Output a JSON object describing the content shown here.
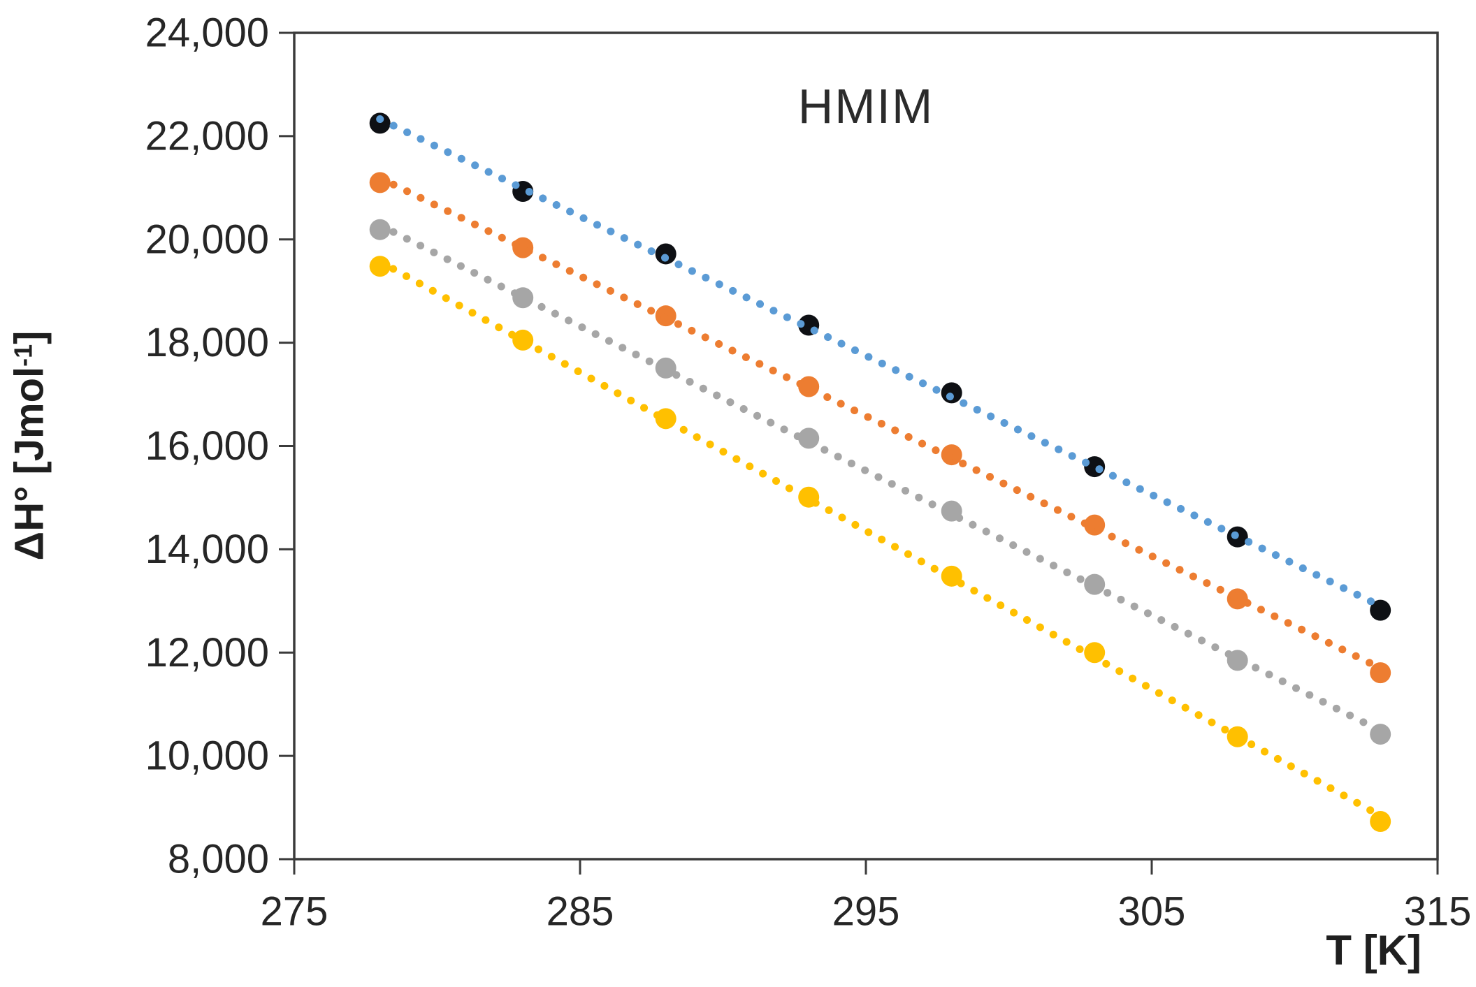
{
  "chart_data": {
    "type": "scatter",
    "title": "HMIM",
    "xlabel": "T [K]",
    "ylabel": "ΔH° [Jmol⁻¹]",
    "ylabel_parts": {
      "main": "ΔH° [Jmol",
      "sup": "-1",
      "close": "]"
    },
    "xlim": [
      275,
      315
    ],
    "ylim": [
      8000,
      24000
    ],
    "grid": false,
    "legend": false,
    "axis_color": "#3b3b3b",
    "text_color": "#262626",
    "trendline_style": "dotted",
    "x_ticks": [
      {
        "value": 275,
        "label": "275"
      },
      {
        "value": 285,
        "label": "285"
      },
      {
        "value": 295,
        "label": "295"
      },
      {
        "value": 305,
        "label": "305"
      },
      {
        "value": 315,
        "label": "315"
      }
    ],
    "y_ticks": [
      {
        "value": 8000,
        "label": "8,000"
      },
      {
        "value": 10000,
        "label": "10,000"
      },
      {
        "value": 12000,
        "label": "12,000"
      },
      {
        "value": 14000,
        "label": "14,000"
      },
      {
        "value": 16000,
        "label": "16,000"
      },
      {
        "value": 18000,
        "label": "18,000"
      },
      {
        "value": 20000,
        "label": "20,000"
      },
      {
        "value": 22000,
        "label": "22,000"
      },
      {
        "value": 24000,
        "label": "24,000"
      }
    ],
    "x": [
      278,
      283,
      288,
      293,
      298,
      303,
      308,
      313
    ],
    "series": [
      {
        "name": "series-black",
        "marker_color": "#0e1014",
        "trendline_color": "#5B9BD5",
        "values": [
          22250,
          20930,
          19720,
          18340,
          17030,
          15600,
          14240,
          12820
        ]
      },
      {
        "name": "series-orange",
        "marker_color": "#ED7D31",
        "trendline_color": "#ED7D31",
        "values": [
          21100,
          19840,
          18520,
          17150,
          15830,
          14470,
          13040,
          11610
        ]
      },
      {
        "name": "series-gray",
        "marker_color": "#A6A6A6",
        "trendline_color": "#A6A6A6",
        "values": [
          20190,
          18870,
          17510,
          16150,
          14740,
          13320,
          11850,
          10420
        ]
      },
      {
        "name": "series-yellow",
        "marker_color": "#FFC000",
        "trendline_color": "#FFC000",
        "values": [
          19480,
          18050,
          16530,
          15010,
          13480,
          12000,
          10370,
          8730
        ]
      }
    ]
  }
}
